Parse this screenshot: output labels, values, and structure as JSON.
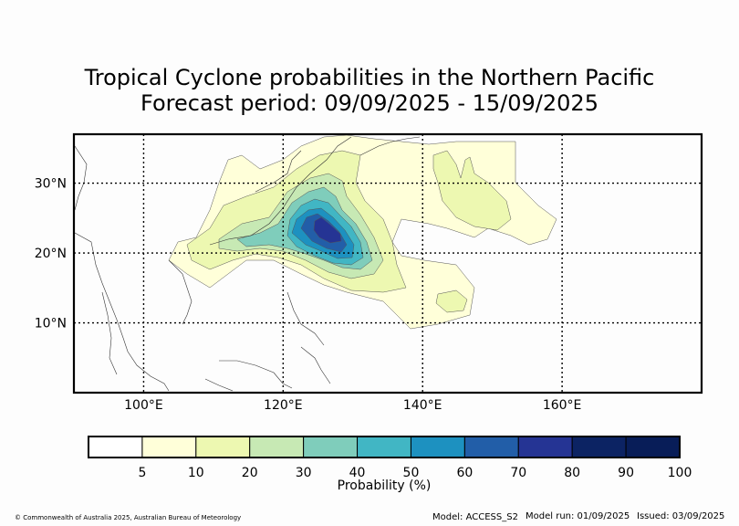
{
  "title_line1": "Tropical Cyclone probabilities in the Northern Pacific",
  "title_line2": "Forecast period: 09/09/2025 - 15/09/2025",
  "map": {
    "lon_range": [
      90,
      180
    ],
    "lat_range": [
      0,
      37
    ],
    "lat_ticks": [
      {
        "value": 30,
        "label": "30°N"
      },
      {
        "value": 20,
        "label": "20°N"
      },
      {
        "value": 10,
        "label": "10°N"
      }
    ],
    "lon_ticks": [
      {
        "value": 100,
        "label": "100°E"
      },
      {
        "value": 120,
        "label": "120°E"
      },
      {
        "value": 140,
        "label": "140°E"
      },
      {
        "value": 160,
        "label": "160°E"
      }
    ],
    "gridlines": "dotted"
  },
  "colorbar": {
    "title": "Probability (%)",
    "levels": [
      "5",
      "10",
      "20",
      "30",
      "40",
      "50",
      "60",
      "70",
      "80",
      "90",
      "100"
    ],
    "colors": [
      "#ffffff",
      "#ffffd9",
      "#edf8b1",
      "#c7e9b4",
      "#7fcdbb",
      "#41b6c4",
      "#1d91c0",
      "#225ea8",
      "#253494",
      "#0c2363",
      "#081d58"
    ]
  },
  "footer": {
    "copyright": "© Commonwealth of Australia 2025, Australian Bureau of Meteorology",
    "model": "Model: ACCESS_S2",
    "model_run": "Model run: 01/09/2025",
    "issued": "Issued: 03/09/2025"
  }
}
